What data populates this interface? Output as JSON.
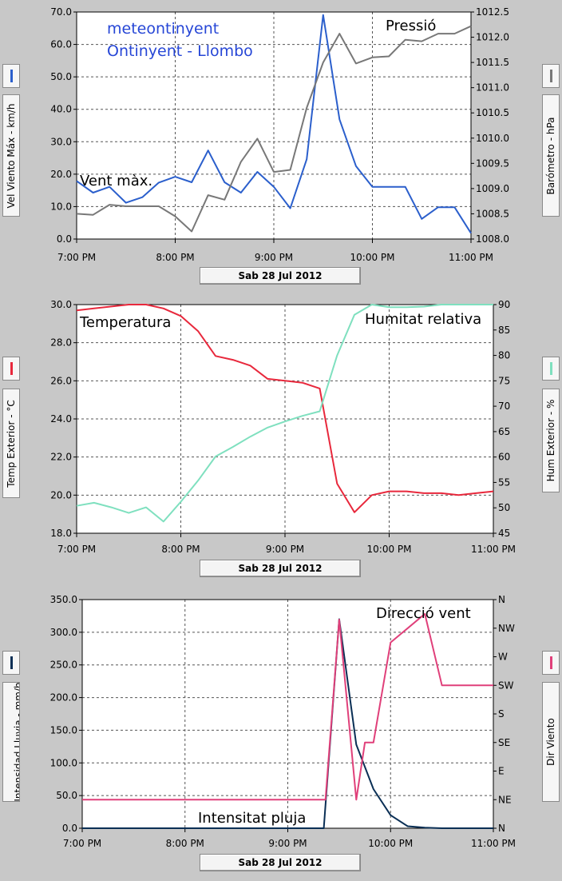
{
  "chart_data": [
    {
      "type": "line",
      "date_label": "Sab 28 Jul 2012",
      "annotations": {
        "station": "meteontinyent",
        "place": "Ontinyent - Llombo",
        "left_series": "Vent màx.",
        "right_series": "Pressió"
      },
      "left_axis": {
        "label": "Vel Viento Máx - km/h",
        "ticks": [
          "0.0",
          "10.0",
          "20.0",
          "30.0",
          "40.0",
          "50.0",
          "60.0",
          "70.0"
        ],
        "min": 0,
        "max": 70
      },
      "right_axis": {
        "label": "Barómetro - hPa",
        "ticks": [
          "1008.0",
          "1008.5",
          "1009.0",
          "1009.5",
          "1010.0",
          "1010.5",
          "1011.0",
          "1011.5",
          "1012.0",
          "1012.5"
        ],
        "min": 1008.0,
        "max": 1012.5
      },
      "x_ticks": [
        "7:00 PM",
        "8:00 PM",
        "9:00 PM",
        "10:00 PM",
        "11:00 PM"
      ],
      "x_range": [
        0,
        240
      ],
      "series": [
        {
          "axis": "left",
          "color": "#2b5fcc",
          "x": [
            0,
            10,
            20,
            30,
            40,
            50,
            60,
            70,
            80,
            90,
            100,
            110,
            120,
            130,
            140,
            150,
            160,
            170,
            180,
            190,
            200,
            210,
            220,
            230,
            240
          ],
          "values": [
            17.9,
            14.3,
            16.1,
            11.2,
            12.9,
            17.4,
            19.2,
            17.5,
            27.3,
            17.5,
            14.3,
            20.7,
            16.1,
            9.5,
            24.6,
            69.1,
            36.9,
            22.5,
            16.1,
            16.1,
            16.1,
            6.2,
            9.8,
            9.8,
            1.8
          ]
        },
        {
          "axis": "right",
          "color": "#787878",
          "x": [
            0,
            10,
            20,
            30,
            40,
            50,
            60,
            70,
            80,
            90,
            100,
            110,
            120,
            130,
            140,
            150,
            160,
            170,
            180,
            190,
            200,
            210,
            220,
            230,
            240
          ],
          "values": [
            1008.5,
            1008.48,
            1008.68,
            1008.65,
            1008.65,
            1008.65,
            1008.45,
            1008.15,
            1008.87,
            1008.78,
            1009.53,
            1009.99,
            1009.33,
            1009.37,
            1010.6,
            1011.5,
            1012.07,
            1011.48,
            1011.6,
            1011.62,
            1011.95,
            1011.92,
            1012.07,
            1012.07,
            1012.22
          ]
        }
      ]
    },
    {
      "type": "line",
      "date_label": "Sab 28 Jul 2012",
      "annotations": {
        "left_series": "Temperatura",
        "right_series": "Humitat relativa"
      },
      "left_axis": {
        "label": "Temp Exterior - °C",
        "ticks": [
          "18.0",
          "20.0",
          "22.0",
          "24.0",
          "26.0",
          "28.0",
          "30.0"
        ],
        "min": 18,
        "max": 30
      },
      "right_axis": {
        "label": "Hum Exterior - %",
        "ticks": [
          "45",
          "50",
          "55",
          "60",
          "65",
          "70",
          "75",
          "80",
          "85",
          "90"
        ],
        "min": 45,
        "max": 90
      },
      "x_ticks": [
        "7:00 PM",
        "8:00 PM",
        "9:00 PM",
        "10:00 PM",
        "11:00 PM"
      ],
      "x_range": [
        0,
        240
      ],
      "series": [
        {
          "axis": "left",
          "color": "#e8283c",
          "x": [
            0,
            10,
            20,
            30,
            40,
            50,
            60,
            70,
            80,
            90,
            100,
            110,
            120,
            130,
            140,
            150,
            160,
            170,
            180,
            190,
            200,
            210,
            220,
            230,
            240
          ],
          "values": [
            29.7,
            29.8,
            29.9,
            30.0,
            30.0,
            29.8,
            29.4,
            28.6,
            27.3,
            27.1,
            26.8,
            26.1,
            26.0,
            25.9,
            25.6,
            20.6,
            19.1,
            20.0,
            20.2,
            20.2,
            20.1,
            20.1,
            20.0,
            20.1,
            20.2
          ]
        },
        {
          "axis": "right",
          "color": "#7fe0bf",
          "x": [
            0,
            10,
            20,
            30,
            40,
            50,
            60,
            70,
            80,
            90,
            100,
            110,
            120,
            130,
            140,
            150,
            160,
            170,
            180,
            190,
            200,
            210,
            220,
            230,
            240
          ],
          "values": [
            50.4,
            51.0,
            50.1,
            49.0,
            50.1,
            47.3,
            51.2,
            55.4,
            60.1,
            62.0,
            64.0,
            65.8,
            67.0,
            68.1,
            69.0,
            80.0,
            88.0,
            90.0,
            89.5,
            89.5,
            89.6,
            90.0,
            90.0,
            90.0,
            90.0
          ]
        }
      ]
    },
    {
      "type": "line",
      "date_label": "Sab 28 Jul 2012",
      "annotations": {
        "left_series": "Intensitat pluja",
        "right_series": "Direcció vent"
      },
      "left_axis": {
        "label": "Intensidad Lluvia - mm/h",
        "ticks": [
          "0.0",
          "50.0",
          "100.0",
          "150.0",
          "200.0",
          "250.0",
          "300.0",
          "350.0"
        ],
        "min": 0,
        "max": 350
      },
      "right_axis": {
        "label": "Dir Viento",
        "ticks": [
          "N",
          "NE",
          "E",
          "SE",
          "S",
          "SW",
          "W",
          "NW",
          "N"
        ],
        "min": 0,
        "max": 8
      },
      "x_ticks": [
        "7:00 PM",
        "8:00 PM",
        "9:00 PM",
        "10:00 PM",
        "11:00 PM"
      ],
      "x_range": [
        0,
        240
      ],
      "series": [
        {
          "axis": "left",
          "color": "#0a2f55",
          "x": [
            0,
            141,
            150,
            160,
            170,
            180,
            190,
            200,
            210,
            220,
            230,
            240
          ],
          "values": [
            0,
            0,
            320,
            128,
            60,
            20,
            3,
            1,
            0,
            0,
            0,
            0
          ]
        },
        {
          "axis": "right",
          "color": "#e0407a",
          "x": [
            0,
            142,
            150,
            160,
            165,
            170,
            180,
            190,
            200,
            210,
            220,
            230,
            240
          ],
          "values": [
            1.0,
            1.0,
            7.3,
            1.0,
            3.0,
            3.0,
            6.5,
            7.0,
            7.5,
            5.0,
            5.0,
            5.0,
            5.0
          ]
        }
      ]
    }
  ]
}
